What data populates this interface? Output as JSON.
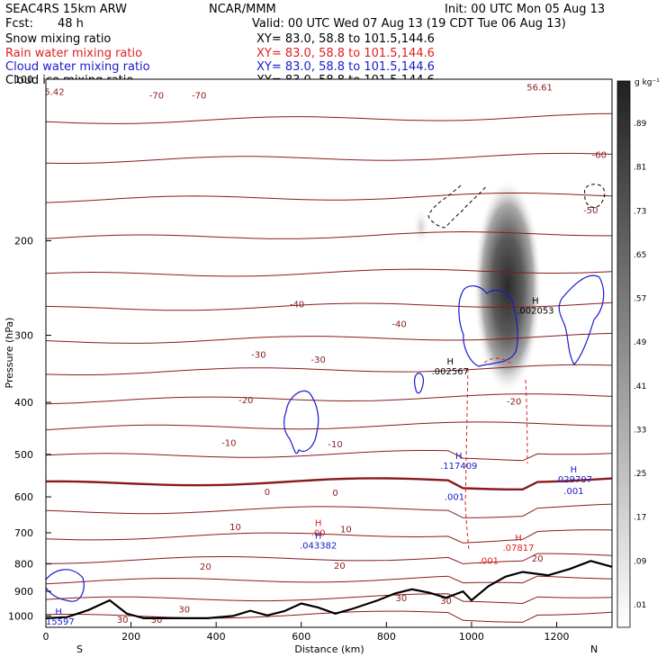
{
  "header": {
    "model": "SEAC4RS 15km ARW",
    "org": "NCAR/MMM",
    "init": "Init: 00 UTC Mon 05 Aug 13",
    "fcst_label": "Fcst:",
    "fcst_value": "48 h",
    "valid": "Valid: 00 UTC Wed 07 Aug 13 (19 CDT Tue 06 Aug 13)",
    "fields": [
      {
        "name": "Snow mixing ratio",
        "xy": "XY=  83.0, 58.8 to 101.5,144.6",
        "color": "#000000"
      },
      {
        "name": "Rain water mixing ratio",
        "xy": "XY=  83.0, 58.8 to 101.5,144.6",
        "color": "#e02020"
      },
      {
        "name": "Cloud water mixing ratio",
        "xy": "XY=  83.0, 58.8 to 101.5,144.6",
        "color": "#1a1acc"
      },
      {
        "name": "Cloud ice mixing ratio",
        "xy": "XY=  83.0, 58.8 to 101.5,144.6",
        "color": "#000000"
      }
    ]
  },
  "chart_data": {
    "type": "contour-cross-section",
    "xlabel": "Distance (km)",
    "ylabel": "Pressure (hPa)",
    "xlim": [
      0,
      1330
    ],
    "ylim": [
      1050,
      100
    ],
    "y_scale": "log",
    "x_ticks": [
      "0",
      "200",
      "400",
      "600",
      "800",
      "1000",
      "1200"
    ],
    "y_ticks": [
      "100",
      "200",
      "300",
      "400",
      "500",
      "600",
      "700",
      "800",
      "900",
      "1000"
    ],
    "end_labels": {
      "left": "S",
      "right": "N"
    },
    "temperature_contour_labels": [
      {
        "x": 260,
        "p": 107,
        "text": "-70"
      },
      {
        "x": 360,
        "p": 107,
        "text": "-70"
      },
      {
        "x": 1300,
        "p": 138,
        "text": "-60"
      },
      {
        "x": 1280,
        "p": 175,
        "text": "-50"
      },
      {
        "x": 590,
        "p": 262,
        "text": "-40"
      },
      {
        "x": 830,
        "p": 285,
        "text": "-40"
      },
      {
        "x": 500,
        "p": 325,
        "text": "-30"
      },
      {
        "x": 640,
        "p": 332,
        "text": "-30"
      },
      {
        "x": 470,
        "p": 395,
        "text": "-20"
      },
      {
        "x": 1100,
        "p": 398,
        "text": "-20"
      },
      {
        "x": 430,
        "p": 475,
        "text": "-10"
      },
      {
        "x": 680,
        "p": 478,
        "text": "-10"
      },
      {
        "x": 520,
        "p": 586,
        "text": "0"
      },
      {
        "x": 680,
        "p": 588,
        "text": "0"
      },
      {
        "x": 445,
        "p": 682,
        "text": "10"
      },
      {
        "x": 705,
        "p": 688,
        "text": "10"
      },
      {
        "x": 375,
        "p": 808,
        "text": "20"
      },
      {
        "x": 690,
        "p": 805,
        "text": "20"
      },
      {
        "x": 1155,
        "p": 780,
        "text": "20"
      },
      {
        "x": 835,
        "p": 925,
        "text": "30"
      },
      {
        "x": 940,
        "p": 935,
        "text": "30"
      },
      {
        "x": 325,
        "p": 970,
        "text": "30"
      },
      {
        "x": 260,
        "p": 1015,
        "text": "30"
      },
      {
        "x": 180,
        "p": 1015,
        "text": "30"
      }
    ],
    "max_labels": [
      {
        "x": 1150,
        "p": 262,
        "field": "snow",
        "lines": [
          "H",
          ".002053"
        ]
      },
      {
        "x": 950,
        "p": 340,
        "field": "snow",
        "lines": [
          "H",
          ".002567"
        ]
      },
      {
        "x": 970,
        "p": 510,
        "field": "cloud_water",
        "lines": [
          "H",
          ".117409"
        ]
      },
      {
        "x": 1240,
        "p": 540,
        "field": "cloud_water",
        "lines": [
          "H",
          ".029797"
        ]
      },
      {
        "x": 1240,
        "p": 593,
        "field": "cloud_water",
        "lines": [
          ".001"
        ]
      },
      {
        "x": 960,
        "p": 608,
        "field": "cloud_water",
        "lines": [
          ".001"
        ]
      },
      {
        "x": 640,
        "p": 680,
        "field": "rain",
        "lines": [
          "H",
          ".00"
        ]
      },
      {
        "x": 640,
        "p": 718,
        "field": "cloud_water",
        "lines": [
          "H",
          ".043382"
        ]
      },
      {
        "x": 1110,
        "p": 725,
        "field": "rain",
        "lines": [
          "H",
          ".07817"
        ]
      },
      {
        "x": 1040,
        "p": 800,
        "field": "rain",
        "lines": [
          ".001"
        ]
      },
      {
        "x": 30,
        "p": 995,
        "field": "cloud_water",
        "lines": [
          "H",
          ".15597"
        ]
      },
      {
        "x": 1160,
        "p": 105,
        "field": "temp",
        "lines": [
          "56.61"
        ]
      },
      {
        "x": 20,
        "p": 107,
        "field": "temp",
        "lines": [
          "5.42"
        ]
      }
    ],
    "colorbar": {
      "unit": "g kg⁻¹",
      "labels": [
        ".01",
        ".09",
        ".17",
        ".25",
        ".33",
        ".41",
        ".49",
        ".57",
        ".65",
        ".73",
        ".81",
        ".89"
      ]
    }
  }
}
